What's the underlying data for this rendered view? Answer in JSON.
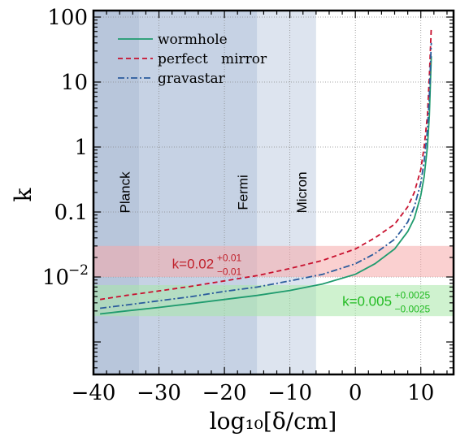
{
  "chart_data": {
    "type": "line",
    "xlabel": "log₁₀[δ/cm]",
    "ylabel": "k",
    "xlim": [
      -40,
      15
    ],
    "ylim_log10": [
      -3.5,
      2.1
    ],
    "yscale": "log",
    "grid": true,
    "legend_position": "top-left",
    "x_ticks": [
      {
        "value": -40,
        "label": "−40"
      },
      {
        "value": -30,
        "label": "−30"
      },
      {
        "value": -20,
        "label": "−20"
      },
      {
        "value": -10,
        "label": "−10"
      },
      {
        "value": 0,
        "label": "0"
      },
      {
        "value": 10,
        "label": "10"
      }
    ],
    "y_ticks": [
      {
        "value": 100,
        "label": "100",
        "sup": ""
      },
      {
        "value": 10,
        "label": "10",
        "sup": ""
      },
      {
        "value": 1,
        "label": "1",
        "sup": ""
      },
      {
        "value": 0.1,
        "label": "0.1",
        "sup": ""
      },
      {
        "value": 0.01,
        "label": "10",
        "sup": "−2"
      }
    ],
    "regions": [
      {
        "label": "Planck",
        "x_start": -40,
        "x_end": -33,
        "color": "#b8c6db"
      },
      {
        "label": "Fermi",
        "x_start": -33,
        "x_end": -15,
        "color": "#c6d2e4"
      },
      {
        "label": "Micron",
        "x_start": -15,
        "x_end": -6,
        "color": "#dde4ef"
      }
    ],
    "bands": [
      {
        "label": "k=0.02",
        "sup": "+0.01",
        "sub": "−0.01",
        "y_low": 0.01,
        "y_high": 0.03,
        "color": "#f6a9a9",
        "text_color": "#c0202a"
      },
      {
        "label": "k=0.005",
        "sup": "+0.0025",
        "sub": "−0.0025",
        "y_low": 0.0025,
        "y_high": 0.0075,
        "color": "#a8e8a8",
        "text_color": "#22bb22"
      }
    ],
    "series": [
      {
        "name": "wormhole",
        "color": "#1f9b6e",
        "dash": "none",
        "x": [
          -39,
          -35,
          -30,
          -25,
          -20,
          -15,
          -10,
          -5,
          0,
          3,
          6,
          8,
          9,
          10,
          10.5,
          11,
          11.3,
          11.6
        ],
        "y": [
          0.0027,
          0.003,
          0.0034,
          0.0039,
          0.0045,
          0.0052,
          0.0062,
          0.0078,
          0.011,
          0.016,
          0.027,
          0.05,
          0.08,
          0.18,
          0.35,
          1.0,
          3.0,
          25
        ]
      },
      {
        "name": "perfect   mirror",
        "color": "#c8102e",
        "dash": "6,4",
        "x": [
          -39,
          -35,
          -30,
          -25,
          -20,
          -15,
          -10,
          -5,
          0,
          3,
          6,
          8,
          9,
          10,
          10.5,
          11,
          11.3,
          11.6
        ],
        "y": [
          0.0045,
          0.0052,
          0.0061,
          0.0072,
          0.0087,
          0.0105,
          0.0135,
          0.018,
          0.027,
          0.04,
          0.065,
          0.12,
          0.2,
          0.45,
          1.0,
          3.0,
          12,
          70
        ]
      },
      {
        "name": "gravastar",
        "color": "#2a5b9c",
        "dash": "8,3,2,3",
        "x": [
          -39,
          -35,
          -30,
          -25,
          -20,
          -15,
          -10,
          -5,
          0,
          3,
          6,
          8,
          9,
          10,
          10.5,
          11,
          11.3,
          11.6
        ],
        "y": [
          0.0033,
          0.0037,
          0.0043,
          0.005,
          0.006,
          0.007,
          0.0087,
          0.011,
          0.016,
          0.023,
          0.038,
          0.07,
          0.12,
          0.28,
          0.6,
          1.8,
          6,
          40
        ]
      }
    ]
  }
}
